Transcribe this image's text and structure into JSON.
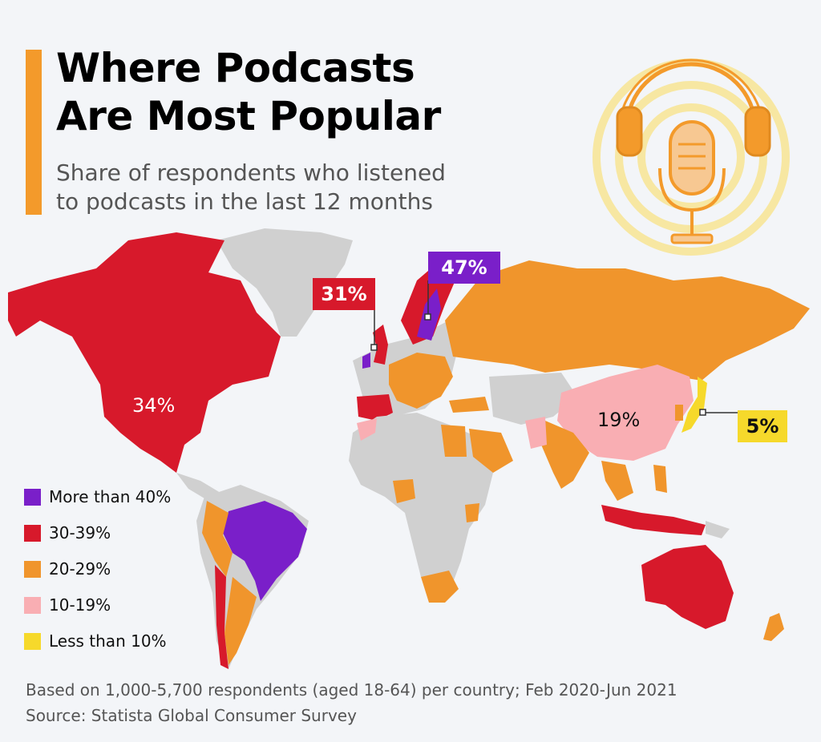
{
  "title": {
    "line1": "Where Podcasts",
    "line2": "Are Most Popular"
  },
  "subtitle": {
    "line1": "Share of respondents who listened",
    "line2": "to podcasts in the last 12 months"
  },
  "illustration": {
    "icon": "podcast-microphone-headphones-icon"
  },
  "colors": {
    "more_than_40": "#7a1fc9",
    "30_39": "#d7192b",
    "20_29": "#f0952c",
    "10_19": "#f9aeb3",
    "less_than_10": "#f6d92b",
    "no_data": "#d0d0d0",
    "accent": "#f39a2b"
  },
  "callouts": [
    {
      "id": "sweden",
      "label": "47%",
      "category": "more_than_40"
    },
    {
      "id": "uk",
      "label": "31%",
      "category": "30_39"
    },
    {
      "id": "japan",
      "label": "5%",
      "category": "less_than_10"
    }
  ],
  "map_labels": [
    {
      "id": "usa",
      "label": "34%",
      "category": "30_39"
    },
    {
      "id": "china",
      "label": "19%",
      "category": "10_19"
    }
  ],
  "legend": [
    {
      "label": "More than 40%",
      "category": "more_than_40"
    },
    {
      "label": "30-39%",
      "category": "30_39"
    },
    {
      "label": "20-29%",
      "category": "20_29"
    },
    {
      "label": "10-19%",
      "category": "10_19"
    },
    {
      "label": "Less than 10%",
      "category": "less_than_10"
    }
  ],
  "footer": {
    "note": "Based on 1,000-5,700 respondents (aged 18-64) per country; Feb 2020-Jun 2021",
    "source": "Source: Statista Global Consumer Survey"
  }
}
